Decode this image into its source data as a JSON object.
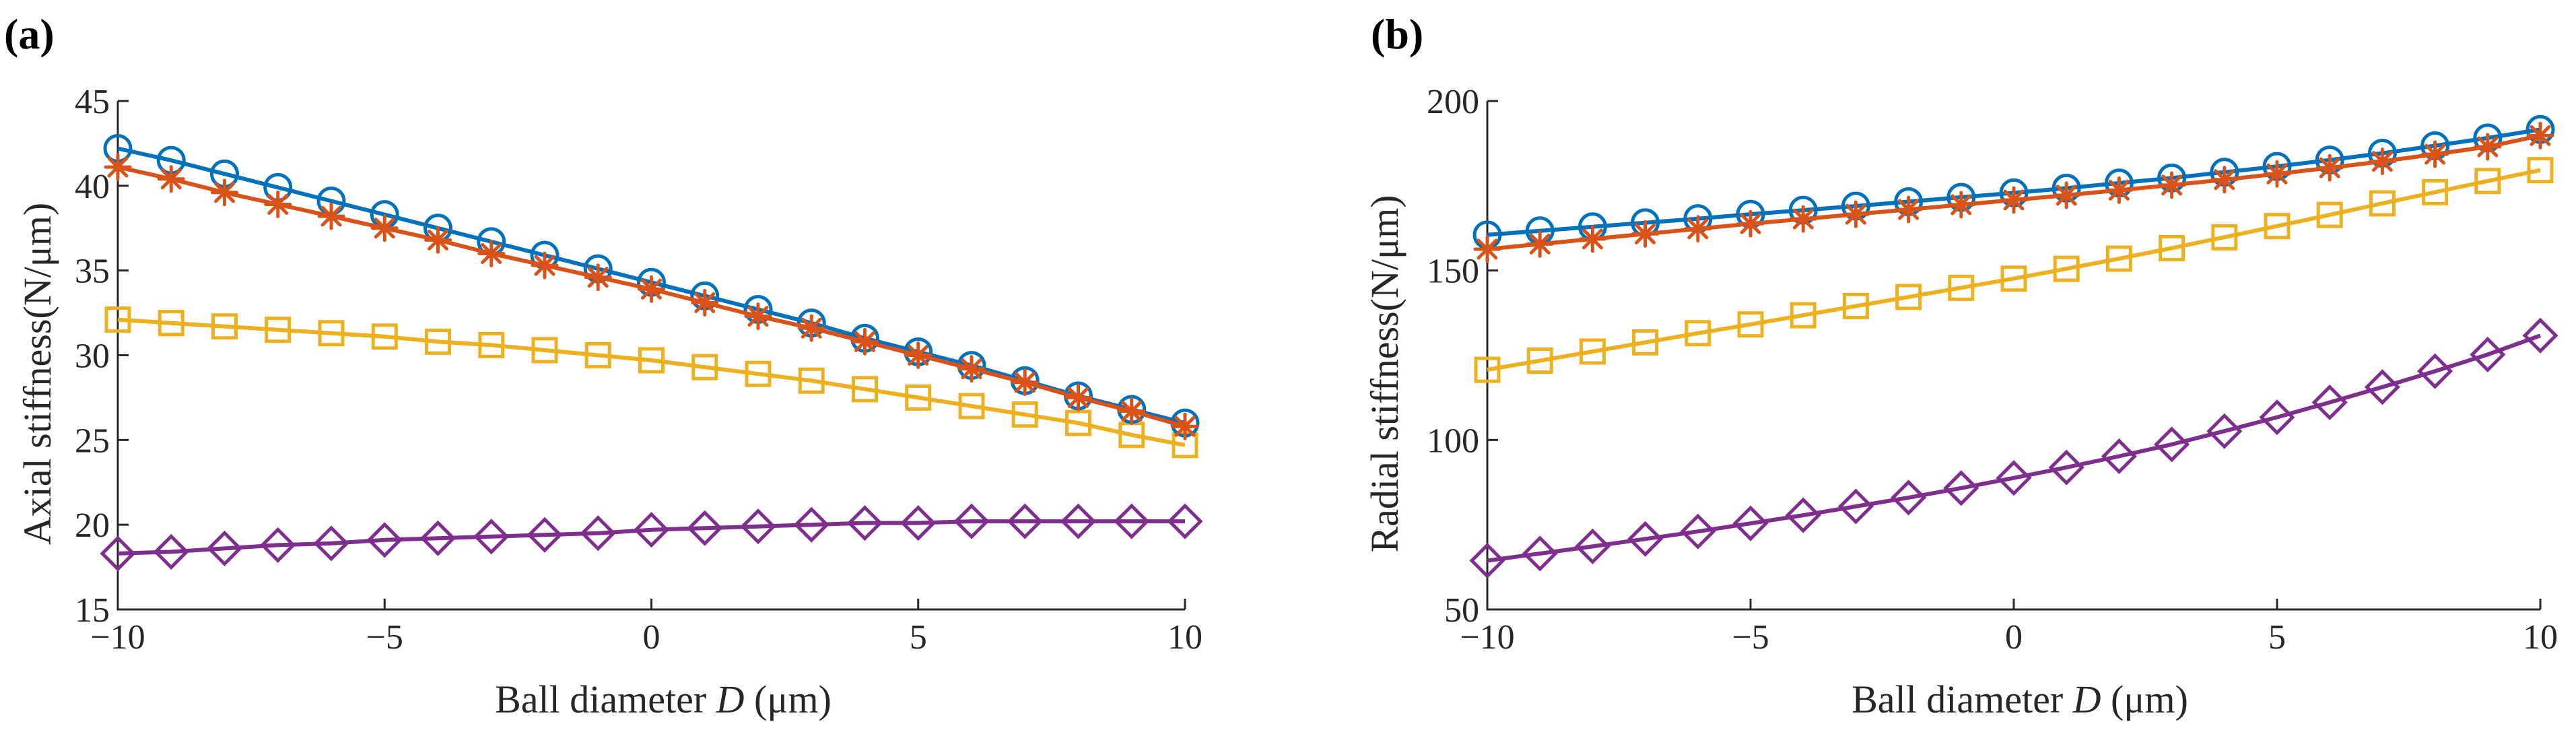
{
  "chart_data": [
    {
      "type": "line",
      "panel_label": "(a)",
      "title": "",
      "xlabel": "Ball diameter D (μm)",
      "xlabel_parts": {
        "before": "Ball diameter ",
        "italic": "D",
        "after": " (μm)"
      },
      "ylabel": "Axial stiffness(N/μm)",
      "xlim": [
        -10,
        10
      ],
      "ylim": [
        15,
        45
      ],
      "xticks": [
        -10,
        -5,
        0,
        5,
        10
      ],
      "xtick_labels": [
        "−10",
        "−5",
        "0",
        "5",
        "10"
      ],
      "yticks": [
        15,
        20,
        25,
        30,
        35,
        40,
        45
      ],
      "ytick_labels": [
        "15",
        "20",
        "25",
        "30",
        "35",
        "40",
        "45"
      ],
      "grid": false,
      "x": [
        -10,
        -9,
        -8,
        -7,
        -6,
        -5,
        -4,
        -3,
        -2,
        -1,
        0,
        1,
        2,
        3,
        4,
        5,
        6,
        7,
        8,
        9,
        10
      ],
      "series": [
        {
          "name": "series-1",
          "color": "#0072BD",
          "marker": "circle",
          "values": [
            42.2,
            41.5,
            40.7,
            39.9,
            39.1,
            38.3,
            37.5,
            36.7,
            35.9,
            35.1,
            34.3,
            33.5,
            32.7,
            31.9,
            31.0,
            30.2,
            29.4,
            28.5,
            27.6,
            26.8,
            26.0
          ]
        },
        {
          "name": "series-2",
          "color": "#D95319",
          "marker": "asterisk",
          "values": [
            41.1,
            40.4,
            39.6,
            38.9,
            38.2,
            37.5,
            36.8,
            36.0,
            35.3,
            34.6,
            33.9,
            33.1,
            32.3,
            31.6,
            30.8,
            30.0,
            29.2,
            28.4,
            27.5,
            26.7,
            25.8
          ]
        },
        {
          "name": "series-3",
          "color": "#EDB120",
          "marker": "square",
          "values": [
            32.1,
            31.9,
            31.7,
            31.5,
            31.3,
            31.1,
            30.8,
            30.6,
            30.3,
            30.0,
            29.7,
            29.3,
            28.9,
            28.5,
            28.0,
            27.5,
            27.0,
            26.5,
            26.0,
            25.3,
            24.7
          ]
        },
        {
          "name": "series-4",
          "color": "#7E2F8E",
          "marker": "diamond",
          "values": [
            18.3,
            18.4,
            18.6,
            18.8,
            18.9,
            19.1,
            19.2,
            19.3,
            19.4,
            19.5,
            19.7,
            19.8,
            19.9,
            20.0,
            20.1,
            20.1,
            20.2,
            20.2,
            20.2,
            20.2,
            20.2
          ]
        }
      ]
    },
    {
      "type": "line",
      "panel_label": "(b)",
      "title": "",
      "xlabel": "Ball diameter D (μm)",
      "xlabel_parts": {
        "before": "Ball diameter ",
        "italic": "D",
        "after": " (μm)"
      },
      "ylabel": "Radial stiffness(N/μm)",
      "xlim": [
        -10,
        10
      ],
      "ylim": [
        50,
        200
      ],
      "xticks": [
        -10,
        -5,
        0,
        5,
        10
      ],
      "xtick_labels": [
        "−10",
        "−5",
        "0",
        "5",
        "10"
      ],
      "yticks": [
        50,
        100,
        150,
        200
      ],
      "ytick_labels": [
        "50",
        "100",
        "150",
        "200"
      ],
      "grid": false,
      "x": [
        -10,
        -9,
        -8,
        -7,
        -6,
        -5,
        -4,
        -3,
        -2,
        -1,
        0,
        1,
        2,
        3,
        4,
        5,
        6,
        7,
        8,
        9,
        10
      ],
      "series": [
        {
          "name": "series-1",
          "color": "#0072BD",
          "marker": "circle",
          "values": [
            160.5,
            161.7,
            162.9,
            164.1,
            165.3,
            166.6,
            167.8,
            169.0,
            170.3,
            171.6,
            172.9,
            174.3,
            175.8,
            177.3,
            179.0,
            180.7,
            182.6,
            184.6,
            186.8,
            189.1,
            191.6
          ]
        },
        {
          "name": "series-2",
          "color": "#D95319",
          "marker": "asterisk",
          "values": [
            156.3,
            157.8,
            159.3,
            160.8,
            162.3,
            163.8,
            165.2,
            166.6,
            168.0,
            169.4,
            170.8,
            172.2,
            173.7,
            175.2,
            176.8,
            178.5,
            180.3,
            182.2,
            184.3,
            186.5,
            189.8
          ]
        },
        {
          "name": "series-3",
          "color": "#EDB120",
          "marker": "square",
          "values": [
            120.7,
            123.4,
            126.1,
            128.8,
            131.5,
            134.1,
            136.8,
            139.5,
            142.2,
            144.9,
            147.6,
            150.5,
            153.5,
            156.6,
            159.8,
            163.1,
            166.4,
            169.8,
            173.1,
            176.4,
            179.6
          ]
        },
        {
          "name": "series-4",
          "color": "#7E2F8E",
          "marker": "diamond",
          "values": [
            64.4,
            66.5,
            68.6,
            70.8,
            73.0,
            75.4,
            77.8,
            80.4,
            83.0,
            85.8,
            88.8,
            91.9,
            95.2,
            98.7,
            102.6,
            106.7,
            111.1,
            115.6,
            120.3,
            125.2,
            130.8
          ]
        }
      ]
    }
  ]
}
